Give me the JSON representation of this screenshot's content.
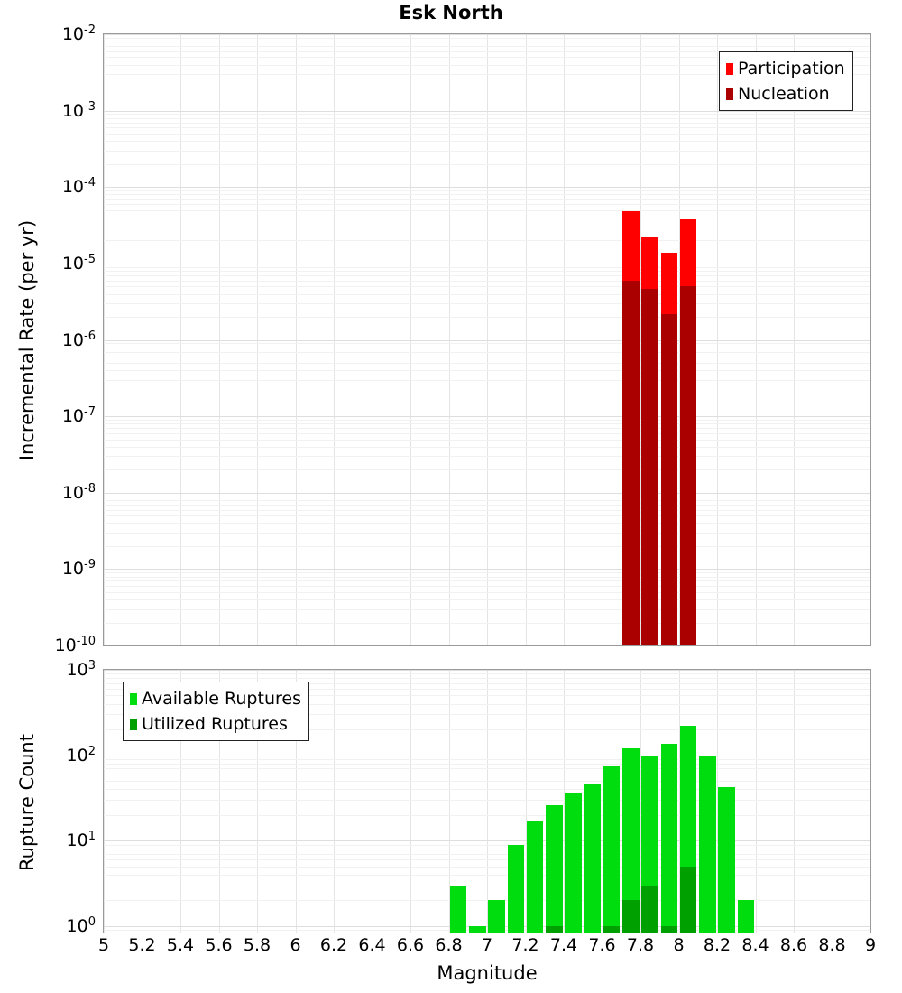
{
  "figure_title": "Esk North",
  "chart_data": [
    {
      "type": "bar",
      "title": "Esk North",
      "ylabel": "Incremental Rate (per yr)",
      "xlabel": "",
      "yscale": "log",
      "ylim_exp": [
        -10,
        -2
      ],
      "ytick_exponents": [
        -2,
        -3,
        -4,
        -5,
        -6,
        -7,
        -8,
        -9,
        -10
      ],
      "xlim": [
        5,
        9
      ],
      "bin_width": 0.1,
      "grid": true,
      "legend_position": "top-right",
      "under_margin_exp": 0,
      "bars_extend_to_bottom": true,
      "series": [
        {
          "name": "Participation",
          "color": "#ff0000",
          "x": [
            7.75,
            7.85,
            7.95,
            8.05
          ],
          "values": [
            4.8e-05,
            2.2e-05,
            1.4e-05,
            3.8e-05
          ]
        },
        {
          "name": "Nucleation",
          "color": "#aa0000",
          "x": [
            7.75,
            7.85,
            7.95,
            8.05
          ],
          "values": [
            6e-06,
            4.7e-06,
            2.2e-06,
            5e-06
          ]
        }
      ]
    },
    {
      "type": "bar",
      "title": "",
      "ylabel": "Rupture Count",
      "xlabel": "Magnitude",
      "yscale": "log",
      "ylim_exp": [
        0,
        3
      ],
      "ytick_exponents": [
        3,
        2,
        1,
        0
      ],
      "xlim": [
        5,
        9
      ],
      "bin_width": 0.1,
      "grid": true,
      "legend_position": "top-left",
      "under_margin_exp": 0.076,
      "bars_extend_to_bottom": true,
      "xtick_values": [
        5,
        5.2,
        5.4,
        5.6,
        5.8,
        6,
        6.2,
        6.4,
        6.6,
        6.8,
        7,
        7.2,
        7.4,
        7.6,
        7.8,
        8,
        8.2,
        8.4,
        8.6,
        8.8,
        9
      ],
      "xtick_labels": [
        "5",
        "5.2",
        "5.4",
        "5.6",
        "5.8",
        "6",
        "6.2",
        "6.4",
        "6.6",
        "6.8",
        "7",
        "7.2",
        "7.4",
        "7.6",
        "7.8",
        "8",
        "8.2",
        "8.4",
        "8.6",
        "8.8",
        "9"
      ],
      "series": [
        {
          "name": "Available Ruptures",
          "color": "#00dd0e",
          "x": [
            6.85,
            6.95,
            7.05,
            7.15,
            7.25,
            7.35,
            7.45,
            7.55,
            7.65,
            7.75,
            7.85,
            7.95,
            8.05,
            8.15,
            8.25,
            8.35
          ],
          "values": [
            3,
            1,
            2,
            9,
            17,
            26,
            36,
            45,
            74,
            120,
            100,
            135,
            220,
            96,
            42,
            2
          ]
        },
        {
          "name": "Utilized Ruptures",
          "color": "#00a000",
          "x": [
            7.35,
            7.65,
            7.75,
            7.85,
            7.95,
            8.05
          ],
          "values": [
            1,
            1,
            2,
            3,
            1,
            5
          ]
        }
      ]
    }
  ]
}
